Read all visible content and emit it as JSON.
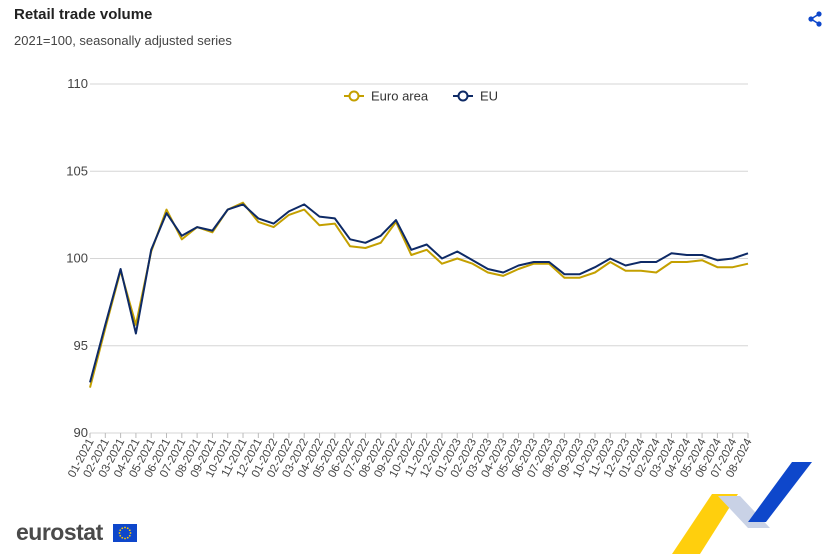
{
  "header": {
    "title": "Retail trade volume",
    "subtitle": "2021=100, seasonally adjusted series"
  },
  "share_icon": "share-icon",
  "logo": {
    "text": "eurostat",
    "flag_icon": "eu-flag-icon"
  },
  "colors": {
    "euro_area": "#c4a000",
    "eu": "#0e2a66",
    "grid": "#d6d6d6",
    "share": "#0e47cb",
    "deco_yellow": "#ffcc00",
    "deco_blue": "#0e47cb"
  },
  "chart_data": {
    "type": "line",
    "legend_position": "top-center",
    "grid": true,
    "ylim": [
      90,
      110
    ],
    "yticks": [
      90,
      95,
      100,
      105,
      110
    ],
    "x": [
      "01-2021",
      "02-2021",
      "03-2021",
      "04-2021",
      "05-2021",
      "06-2021",
      "07-2021",
      "08-2021",
      "09-2021",
      "10-2021",
      "11-2021",
      "12-2021",
      "01-2022",
      "02-2022",
      "03-2022",
      "04-2022",
      "05-2022",
      "06-2022",
      "07-2022",
      "08-2022",
      "09-2022",
      "10-2022",
      "11-2022",
      "12-2022",
      "01-2023",
      "02-2023",
      "03-2023",
      "04-2023",
      "05-2023",
      "06-2023",
      "07-2023",
      "08-2023",
      "09-2023",
      "10-2023",
      "11-2023",
      "12-2023",
      "01-2024",
      "02-2024",
      "03-2024",
      "04-2024",
      "05-2024",
      "06-2024",
      "07-2024",
      "08-2024"
    ],
    "series": [
      {
        "name": "Euro area",
        "color": "#c4a000",
        "values": [
          92.6,
          96.0,
          99.3,
          96.2,
          100.4,
          102.8,
          101.1,
          101.8,
          101.5,
          102.8,
          103.2,
          102.1,
          101.8,
          102.5,
          102.8,
          101.9,
          102.0,
          100.7,
          100.6,
          100.9,
          102.1,
          100.2,
          100.5,
          99.7,
          100.0,
          99.7,
          99.2,
          99.0,
          99.4,
          99.7,
          99.7,
          98.9,
          98.9,
          99.2,
          99.8,
          99.3,
          99.3,
          99.2,
          99.8,
          99.8,
          99.9,
          99.5,
          99.5,
          99.7
        ]
      },
      {
        "name": "EU",
        "color": "#0e2a66",
        "values": [
          92.9,
          96.2,
          99.4,
          95.7,
          100.5,
          102.6,
          101.3,
          101.8,
          101.6,
          102.8,
          103.1,
          102.3,
          102.0,
          102.7,
          103.1,
          102.4,
          102.3,
          101.1,
          100.9,
          101.3,
          102.2,
          100.5,
          100.8,
          100.0,
          100.4,
          99.9,
          99.4,
          99.2,
          99.6,
          99.8,
          99.8,
          99.1,
          99.1,
          99.5,
          100.0,
          99.6,
          99.8,
          99.8,
          100.3,
          100.2,
          100.2,
          99.9,
          100.0,
          100.3
        ]
      }
    ]
  }
}
